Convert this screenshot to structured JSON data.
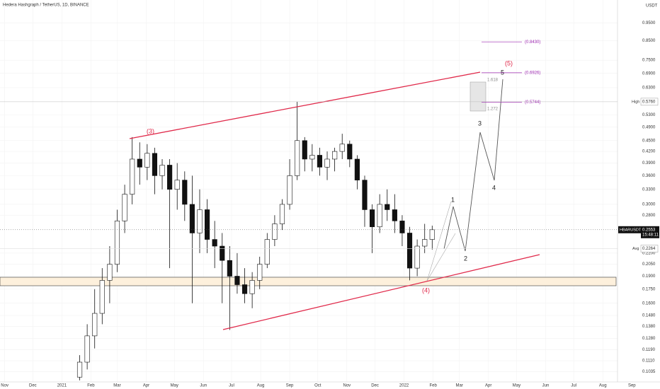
{
  "chart_data": {
    "type": "candlestick",
    "title": "Hedera Hashgraph / TetherUS, 1D, BINANCE",
    "y_unit": "USDT",
    "log_scale": true,
    "xlim": [
      -5,
      699
    ],
    "ylim": [
      0.097,
      1.1
    ],
    "xticks": [
      {
        "value": 0,
        "label": "Nov"
      },
      {
        "value": 30,
        "label": "Dec"
      },
      {
        "value": 61,
        "label": "2021"
      },
      {
        "value": 92,
        "label": "Feb"
      },
      {
        "value": 120,
        "label": "Mar"
      },
      {
        "value": 151,
        "label": "Apr"
      },
      {
        "value": 181,
        "label": "May"
      },
      {
        "value": 212,
        "label": "Jun"
      },
      {
        "value": 242,
        "label": "Jul"
      },
      {
        "value": 273,
        "label": "Aug"
      },
      {
        "value": 304,
        "label": "Sep"
      },
      {
        "value": 334,
        "label": "Oct"
      },
      {
        "value": 365,
        "label": "Nov"
      },
      {
        "value": 395,
        "label": "Dec"
      },
      {
        "value": 426,
        "label": "2022"
      },
      {
        "value": 457,
        "label": "Feb"
      },
      {
        "value": 485,
        "label": "Mar"
      },
      {
        "value": 516,
        "label": "Apr"
      },
      {
        "value": 546,
        "label": "May"
      },
      {
        "value": 577,
        "label": "Jun"
      },
      {
        "value": 607,
        "label": "Jul"
      },
      {
        "value": 638,
        "label": "Aug"
      },
      {
        "value": 669,
        "label": "Sep"
      }
    ],
    "yticks": [
      {
        "value": 0.95,
        "label": "0.9500"
      },
      {
        "value": 0.85,
        "label": "0.8500"
      },
      {
        "value": 0.75,
        "label": "0.7500"
      },
      {
        "value": 0.69,
        "label": "0.6900"
      },
      {
        "value": 0.63,
        "label": "0.6300"
      },
      {
        "value": 0.53,
        "label": "0.5300"
      },
      {
        "value": 0.49,
        "label": "0.4900"
      },
      {
        "value": 0.45,
        "label": "0.4500"
      },
      {
        "value": 0.42,
        "label": "0.4200"
      },
      {
        "value": 0.39,
        "label": "0.3900"
      },
      {
        "value": 0.36,
        "label": "0.3600"
      },
      {
        "value": 0.33,
        "label": "0.3300"
      },
      {
        "value": 0.3,
        "label": "0.3000"
      },
      {
        "value": 0.28,
        "label": "0.2800"
      },
      {
        "value": 0.22,
        "label": "0.2200"
      },
      {
        "value": 0.205,
        "label": "0.2050"
      },
      {
        "value": 0.19,
        "label": "0.1900"
      },
      {
        "value": 0.175,
        "label": "0.1750"
      },
      {
        "value": 0.16,
        "label": "0.1600"
      },
      {
        "value": 0.148,
        "label": "0.1480"
      },
      {
        "value": 0.138,
        "label": "0.1380"
      },
      {
        "value": 0.128,
        "label": "0.1280"
      },
      {
        "value": 0.119,
        "label": "0.1190"
      },
      {
        "value": 0.111,
        "label": "0.1110"
      },
      {
        "value": 0.1035,
        "label": "0.1035"
      }
    ],
    "up_color": "#ffffff",
    "down_color": "#111111",
    "x": [
      80,
      88,
      96,
      104,
      112,
      120,
      128,
      136,
      144,
      152,
      160,
      168,
      176,
      184,
      192,
      200,
      208,
      216,
      224,
      232,
      240,
      248,
      256,
      264,
      272,
      280,
      288,
      296,
      304,
      312,
      320,
      328,
      336,
      344,
      352,
      360,
      368,
      376,
      384,
      392,
      400,
      408,
      416,
      424,
      432,
      440,
      448,
      456
    ],
    "open": [
      0.1,
      0.11,
      0.13,
      0.15,
      0.185,
      0.205,
      0.27,
      0.32,
      0.4,
      0.38,
      0.415,
      0.36,
      0.385,
      0.33,
      0.35,
      0.3,
      0.25,
      0.29,
      0.24,
      0.23,
      0.21,
      0.19,
      0.18,
      0.17,
      0.185,
      0.205,
      0.24,
      0.265,
      0.3,
      0.36,
      0.45,
      0.4,
      0.41,
      0.38,
      0.4,
      0.42,
      0.44,
      0.4,
      0.35,
      0.29,
      0.26,
      0.3,
      0.29,
      0.27,
      0.25,
      0.2,
      0.23,
      0.24
    ],
    "high": [
      0.115,
      0.14,
      0.175,
      0.2,
      0.23,
      0.29,
      0.34,
      0.46,
      0.445,
      0.44,
      0.43,
      0.4,
      0.4,
      0.39,
      0.37,
      0.36,
      0.33,
      0.31,
      0.27,
      0.25,
      0.23,
      0.22,
      0.2,
      0.195,
      0.215,
      0.25,
      0.28,
      0.31,
      0.4,
      0.576,
      0.46,
      0.44,
      0.43,
      0.42,
      0.43,
      0.47,
      0.45,
      0.41,
      0.36,
      0.3,
      0.32,
      0.33,
      0.32,
      0.28,
      0.26,
      0.24,
      0.265,
      0.262
    ],
    "low": [
      0.098,
      0.105,
      0.12,
      0.14,
      0.16,
      0.195,
      0.25,
      0.3,
      0.34,
      0.35,
      0.32,
      0.33,
      0.2,
      0.29,
      0.27,
      0.16,
      0.22,
      0.22,
      0.2,
      0.16,
      0.135,
      0.17,
      0.16,
      0.155,
      0.175,
      0.2,
      0.23,
      0.255,
      0.29,
      0.35,
      0.37,
      0.37,
      0.36,
      0.35,
      0.37,
      0.4,
      0.38,
      0.33,
      0.26,
      0.22,
      0.25,
      0.27,
      0.25,
      0.23,
      0.185,
      0.19,
      0.22,
      0.225
    ],
    "close": [
      0.11,
      0.13,
      0.15,
      0.185,
      0.205,
      0.27,
      0.32,
      0.4,
      0.38,
      0.415,
      0.36,
      0.385,
      0.33,
      0.35,
      0.3,
      0.25,
      0.29,
      0.24,
      0.23,
      0.21,
      0.19,
      0.18,
      0.17,
      0.185,
      0.205,
      0.24,
      0.265,
      0.3,
      0.36,
      0.45,
      0.4,
      0.41,
      0.38,
      0.4,
      0.42,
      0.44,
      0.4,
      0.35,
      0.29,
      0.26,
      0.3,
      0.29,
      0.27,
      0.25,
      0.2,
      0.23,
      0.24,
      0.2553
    ],
    "levels": [
      {
        "value": 0.843,
        "label": "(0.8430)"
      },
      {
        "value": 0.6926,
        "label": "(0.6926)"
      },
      {
        "value": 0.5744,
        "label": "(0.5744)"
      }
    ],
    "high_line": {
      "name": "High",
      "value": 0.576,
      "label": "0.5760"
    },
    "avg_line": {
      "name": "Avg",
      "value": 0.2264
    },
    "last_price": {
      "symbol": "HBARUSDT",
      "value": 0.2553,
      "countdown": "15:48:11"
    },
    "fib_ratios": [
      1.618,
      1.272
    ],
    "waves": [
      "(3)",
      "(4)",
      "(5)",
      "1",
      "2",
      "3",
      "4",
      "5"
    ]
  }
}
